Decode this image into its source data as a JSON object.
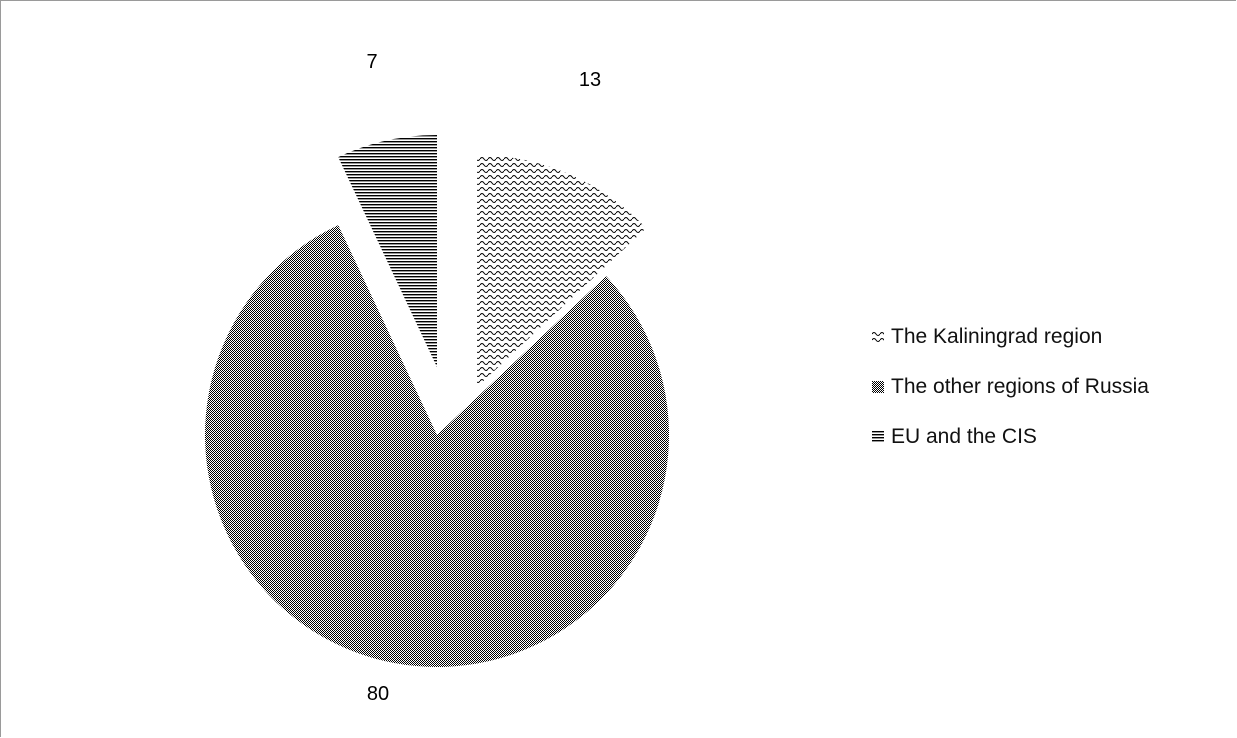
{
  "chart_data": {
    "type": "pie",
    "exploded": true,
    "slices": [
      {
        "label": "The Kaliningrad region",
        "value": 13,
        "pattern": "wave",
        "color": "#000000"
      },
      {
        "label": "The other regions of Russia",
        "value": 80,
        "pattern": "checker",
        "color": "#000000"
      },
      {
        "label": "EU and the CIS",
        "value": 7,
        "pattern": "horizontal-lines",
        "color": "#000000"
      }
    ],
    "legend_position": "right",
    "data_labels": [
      "13",
      "80",
      "7"
    ]
  },
  "legend": {
    "items": [
      {
        "label": "The Kaliningrad region",
        "pattern": "wave"
      },
      {
        "label": "The other regions of Russia",
        "pattern": "checker"
      },
      {
        "label": "EU and the CIS",
        "pattern": "horizontal-lines"
      }
    ]
  }
}
